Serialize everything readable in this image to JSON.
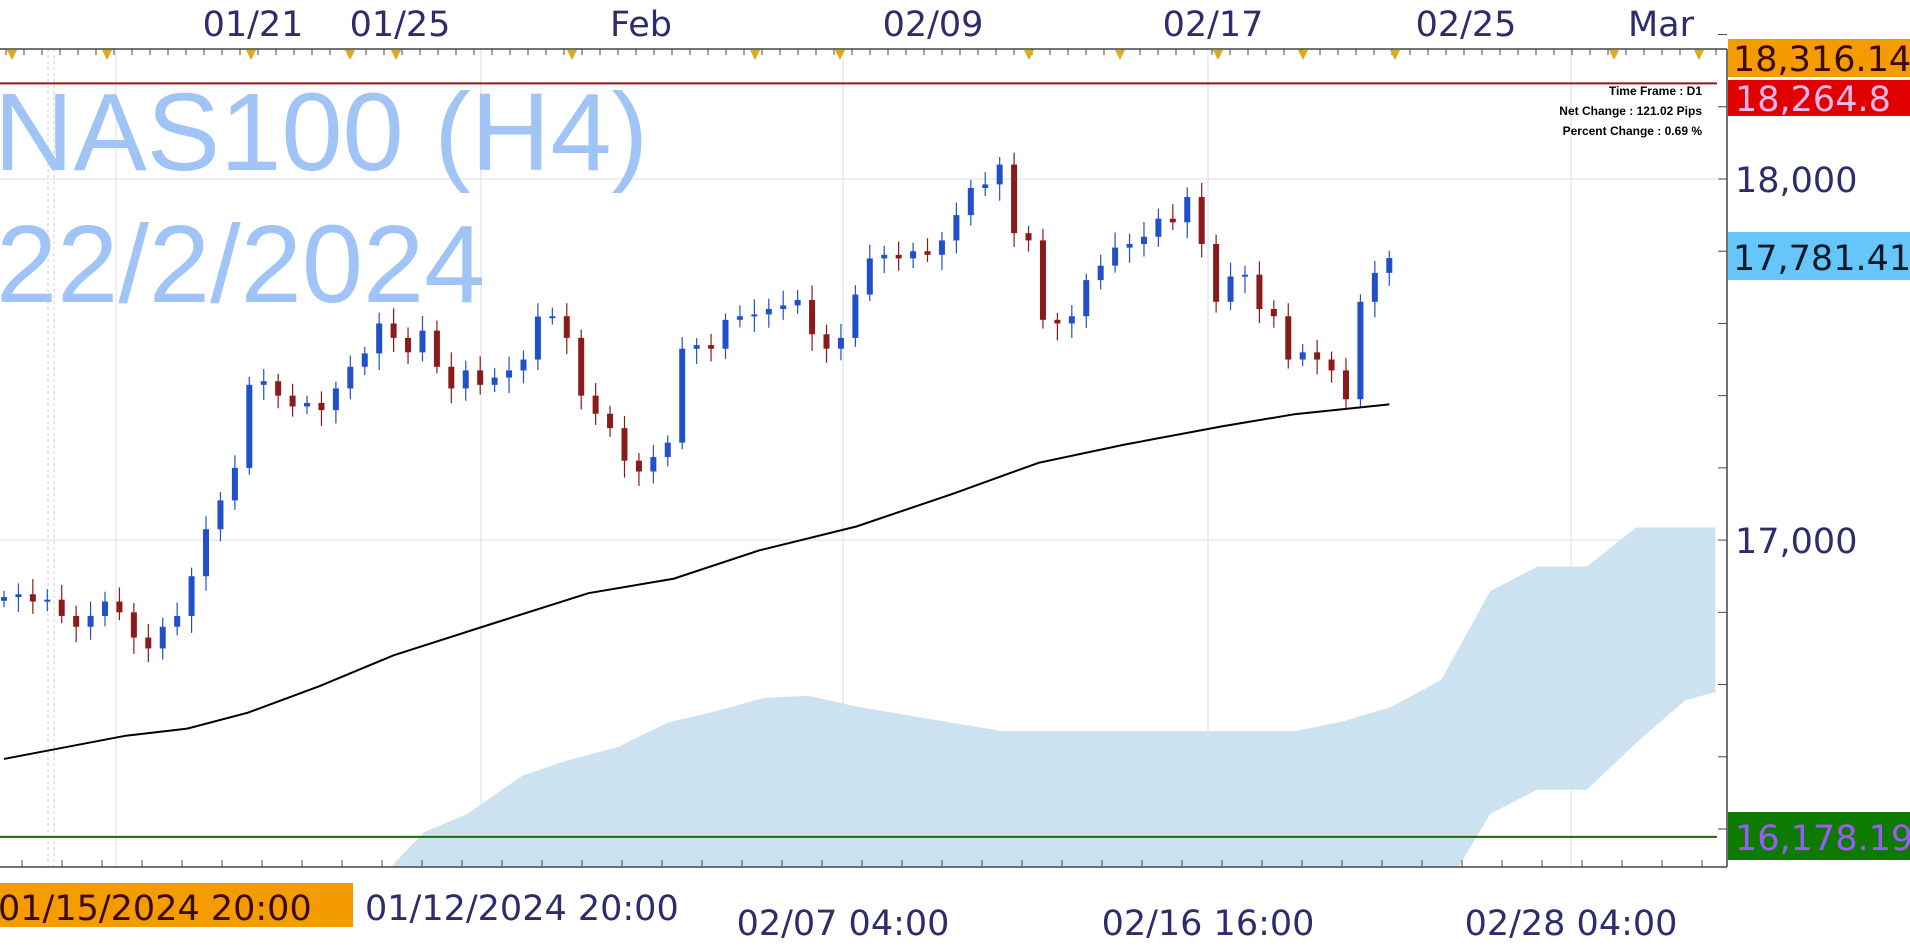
{
  "chart_data": {
    "type": "candlestick",
    "title": "NAS100 (H4)",
    "subtitle": "22/2/2024",
    "info": {
      "time_frame": "Time Frame : D1",
      "net_change": "Net Change : 121.02 Pips",
      "percent_change": "Percent Change : 0.69 %"
    },
    "top_axis_labels": [
      "01/21",
      "01/25",
      "Feb",
      "02/09",
      "02/17",
      "02/25",
      "Mar"
    ],
    "bottom_axis_labels": [
      "02/07 04:00",
      "02/16 16:00",
      "02/28 04:00"
    ],
    "bottom_axis_hidden_label": "01/12/2024 20:00",
    "crosshair_date_label": "01/15/2024 20:00",
    "y_ticks": [
      "18,000",
      "17,000"
    ],
    "y_tick_values": [
      18000,
      17000
    ],
    "ylim": [
      16093,
      18500
    ],
    "grid": true,
    "price_labels": {
      "high_line": "18,316.14",
      "resistance": "18,264.8",
      "current": "17,781.41",
      "support": "16,178.19"
    },
    "levels": {
      "resistance": 18264.8,
      "support": 16178.19
    },
    "colors": {
      "bull": "#2250c8",
      "bear": "#8b1a1a",
      "ma": "#000000",
      "cloud": "#cde2f0",
      "resistance_line": "#8b1a1a",
      "support_line": "#1a6b00",
      "high_label": "#f49b00",
      "resistance_label": "#e00000",
      "current_label": "#66c6fa",
      "support_label": "#0e7a00",
      "support_text": "#9b59ff",
      "axis_text": "#2e2d6b",
      "watermark": "#9fc4f5"
    },
    "closes": [
      16842,
      16850,
      16830,
      16835,
      16790,
      16760,
      16790,
      16830,
      16800,
      16730,
      16700,
      16760,
      16790,
      16900,
      17030,
      17110,
      17200,
      17430,
      17440,
      17400,
      17370,
      17380,
      17360,
      17420,
      17480,
      17517,
      17600,
      17560,
      17520,
      17580,
      17480,
      17420,
      17470,
      17430,
      17450,
      17470,
      17500,
      17619,
      17620,
      17560,
      17400,
      17350,
      17310,
      17220,
      17190,
      17230,
      17270,
      17530,
      17540,
      17530,
      17610,
      17620,
      17625,
      17640,
      17650,
      17665,
      17570,
      17530,
      17560,
      17680,
      17780,
      17790,
      17780,
      17800,
      17790,
      17830,
      17900,
      17975,
      17985,
      18040,
      17850,
      17830,
      17610,
      17600,
      17620,
      17720,
      17760,
      17810,
      17820,
      17840,
      17890,
      17880,
      17950,
      17820,
      17660,
      17730,
      17735,
      17640,
      17620,
      17500,
      17520,
      17500,
      17470,
      17390,
      17660,
      17740,
      17781
    ],
    "moving_average": [
      [
        0,
        16394
      ],
      [
        8.4,
        16458
      ],
      [
        12.7,
        16478
      ],
      [
        16.9,
        16522
      ],
      [
        21.9,
        16596
      ],
      [
        27,
        16681
      ],
      [
        33.8,
        16768
      ],
      [
        40.5,
        16853
      ],
      [
        46.4,
        16893
      ],
      [
        52.3,
        16971
      ],
      [
        59.1,
        17038
      ],
      [
        65.8,
        17129
      ],
      [
        71.7,
        17214
      ],
      [
        77.6,
        17264
      ],
      [
        84.4,
        17315
      ],
      [
        89.5,
        17349
      ],
      [
        96,
        17376
      ]
    ],
    "cloud_top": [
      [
        26.8,
        16093
      ],
      [
        29.1,
        16191
      ],
      [
        32.1,
        16242
      ],
      [
        35.9,
        16347
      ],
      [
        38.8,
        16387
      ],
      [
        42.6,
        16428
      ],
      [
        46,
        16495
      ],
      [
        48.9,
        16522
      ],
      [
        52.7,
        16563
      ],
      [
        55.7,
        16569
      ],
      [
        59.1,
        16539
      ],
      [
        64.1,
        16505
      ],
      [
        69.2,
        16471
      ],
      [
        89.5,
        16471
      ],
      [
        92.8,
        16498
      ],
      [
        96.2,
        16539
      ],
      [
        99.6,
        16613
      ],
      [
        103,
        16859
      ],
      [
        106.3,
        16927
      ],
      [
        109.7,
        16927
      ],
      [
        113.1,
        17035
      ],
      [
        118.6,
        17035
      ]
    ],
    "cloud_bottom": [
      [
        118.6,
        16579
      ],
      [
        116.5,
        16556
      ],
      [
        113.1,
        16438
      ],
      [
        109.7,
        16309
      ],
      [
        106.3,
        16309
      ],
      [
        103,
        16242
      ],
      [
        100.8,
        16093
      ]
    ]
  }
}
